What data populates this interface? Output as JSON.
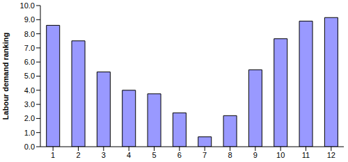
{
  "chart_data": {
    "type": "bar",
    "y_label": "Labour demand ranking",
    "categories": [
      "1",
      "2",
      "3",
      "4",
      "5",
      "6",
      "7",
      "8",
      "9",
      "10",
      "11",
      "12"
    ],
    "values": [
      8.6,
      7.5,
      5.3,
      4.0,
      3.75,
      2.4,
      0.7,
      2.2,
      5.45,
      7.65,
      8.9,
      9.15
    ],
    "color": "#9999ff",
    "ylim": [
      0,
      10
    ],
    "yticks": [
      {
        "value": 0,
        "label": "0.0"
      },
      {
        "value": 1,
        "label": "1.0"
      },
      {
        "value": 2,
        "label": "2.0"
      },
      {
        "value": 3,
        "label": "3.0"
      },
      {
        "value": 4,
        "label": "4.0"
      },
      {
        "value": 5,
        "label": "5.0"
      },
      {
        "value": 6,
        "label": "6.0"
      },
      {
        "value": 7,
        "label": "7.0"
      },
      {
        "value": 8,
        "label": "8.0"
      },
      {
        "value": 9,
        "label": "9.0"
      },
      {
        "value": 10,
        "label": "10.0"
      }
    ],
    "grid": false
  }
}
